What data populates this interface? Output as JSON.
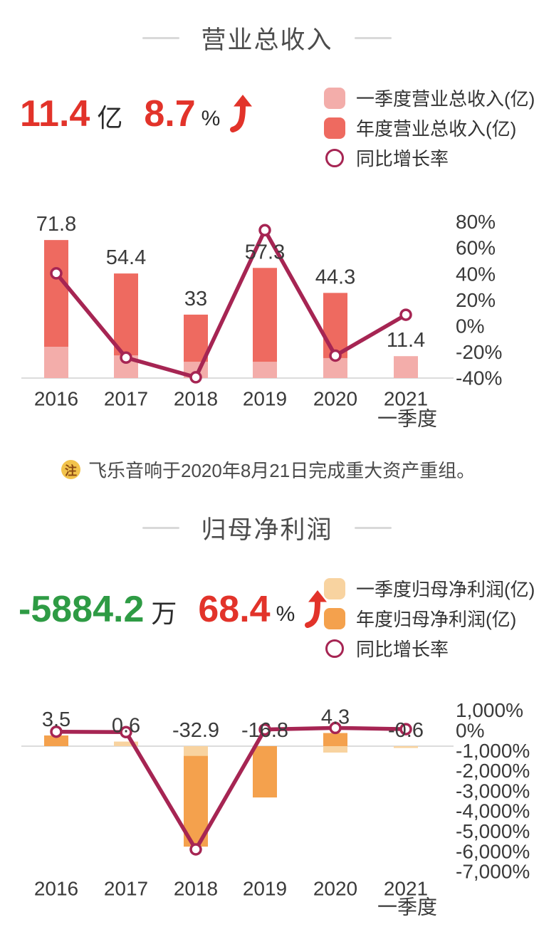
{
  "colors": {
    "accent_red": "#e2332a",
    "green": "#2e9b44",
    "growth_line": "#a62553",
    "revenue_annual_bar": "#ee6a60",
    "revenue_q1_bar": "#f3adaa",
    "profit_annual_bar": "#f4a14d",
    "profit_q1_bar": "#f8d3a0",
    "note_badge_bg": "#f2c34c",
    "note_badge_text": "#8c4a12",
    "axis_text": "#3a3a3a",
    "title_text": "#4c4c4c"
  },
  "sections": [
    {
      "title": "营业总收入",
      "stat": {
        "value": "11.4",
        "unit": "亿",
        "growth": "8.7",
        "percent_sign": "%",
        "value_color": "#e2332a",
        "growth_color": "#e2332a",
        "trend": "up"
      },
      "legend": [
        {
          "label": "一季度营业总收入(亿)",
          "swatch": "square",
          "color": "#f3adaa"
        },
        {
          "label": "年度营业总收入(亿)",
          "swatch": "square",
          "color": "#ee6a60"
        },
        {
          "label": "同比增长率",
          "swatch": "ring",
          "color": "#a62553"
        }
      ],
      "note": {
        "badge": "注",
        "text": "飞乐音响于2020年8月21日完成重大资产重组。"
      }
    },
    {
      "title": "归母净利润",
      "stat": {
        "value": "-5884.2",
        "unit": "万",
        "growth": "68.4",
        "percent_sign": "%",
        "value_color": "#2e9b44",
        "growth_color": "#e2332a",
        "trend": "up"
      },
      "legend": [
        {
          "label": "一季度归母净利润(亿)",
          "swatch": "square",
          "color": "#f8d3a0"
        },
        {
          "label": "年度归母净利润(亿)",
          "swatch": "square",
          "color": "#f4a14d"
        },
        {
          "label": "同比增长率",
          "swatch": "ring",
          "color": "#a62553"
        }
      ]
    }
  ],
  "chart_data": [
    {
      "id": "revenue-chart",
      "type": "bar+line",
      "title": "营业总收入",
      "categories": [
        {
          "label": "2016"
        },
        {
          "label": "2017"
        },
        {
          "label": "2018"
        },
        {
          "label": "2019"
        },
        {
          "label": "2020"
        },
        {
          "label": "2021",
          "sub": "一季度"
        }
      ],
      "series_annual": {
        "name": "年度营业总收入(亿)",
        "color": "#ee6a60",
        "values": [
          71.8,
          54.4,
          33,
          57.3,
          44.3,
          null
        ]
      },
      "series_q1": {
        "name": "一季度营业总收入(亿)",
        "color": "#f3adaa",
        "values": [
          16.3,
          11.8,
          8.5,
          8.5,
          10.4,
          11.4
        ]
      },
      "series_growth": {
        "name": "同比增长率",
        "color": "#a62553",
        "unit": "%",
        "values": [
          40.5,
          -24.2,
          -39.3,
          73.6,
          -22.7,
          8.7
        ]
      },
      "bar_labels": [
        "71.8",
        "54.4",
        "33",
        "57.3",
        "44.3",
        "11.4"
      ],
      "right_axis": {
        "min": -40,
        "max": 80,
        "ticks": [
          {
            "v": 80,
            "label": "80%"
          },
          {
            "v": 60,
            "label": "60%"
          },
          {
            "v": 40,
            "label": "40%"
          },
          {
            "v": 20,
            "label": "20%"
          },
          {
            "v": 0,
            "label": "0%"
          },
          {
            "v": -20,
            "label": "-20%"
          },
          {
            "v": -40,
            "label": "-40%"
          }
        ]
      }
    },
    {
      "id": "profit-chart",
      "type": "bar+line",
      "title": "归母净利润",
      "categories": [
        {
          "label": "2016"
        },
        {
          "label": "2017"
        },
        {
          "label": "2018"
        },
        {
          "label": "2019"
        },
        {
          "label": "2020"
        },
        {
          "label": "2021",
          "sub": "一季度"
        }
      ],
      "series_annual": {
        "name": "年度归母净利润(亿)",
        "color": "#f4a14d",
        "values": [
          3.5,
          0.6,
          -32.9,
          -16.8,
          4.3,
          null
        ]
      },
      "series_q1": {
        "name": "一季度归母净利润(亿)",
        "color": "#f8d3a0",
        "values": [
          null,
          1.5,
          -3.2,
          null,
          -2.1,
          -0.6
        ]
      },
      "series_growth": {
        "name": "同比增长率",
        "color": "#a62553",
        "unit": "%",
        "values": [
          -60,
          -83,
          -5900,
          49,
          126,
          68.4
        ]
      },
      "bar_labels": [
        "3.5",
        "0.6",
        "-32.9",
        "-16.8",
        "4.3",
        "-0.6"
      ],
      "right_axis": {
        "min": -7000,
        "max": 1000,
        "ticks": [
          {
            "v": 1000,
            "label": "1,000%"
          },
          {
            "v": 0,
            "label": "0%"
          },
          {
            "v": -1000,
            "label": "-1,000%"
          },
          {
            "v": -2000,
            "label": "-2,000%"
          },
          {
            "v": -3000,
            "label": "-3,000%"
          },
          {
            "v": -4000,
            "label": "-4,000%"
          },
          {
            "v": -5000,
            "label": "-5,000%"
          },
          {
            "v": -6000,
            "label": "-6,000%"
          },
          {
            "v": -7000,
            "label": "-7,000%"
          }
        ]
      }
    }
  ]
}
